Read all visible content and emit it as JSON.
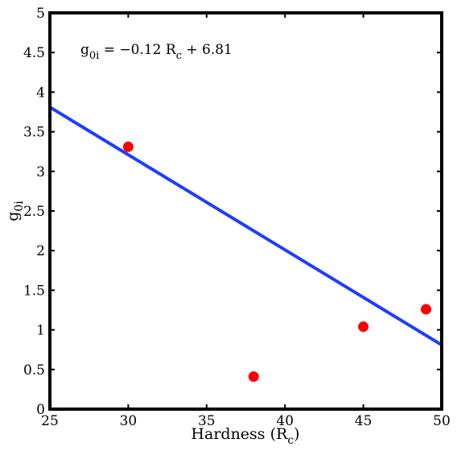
{
  "chart_data": {
    "type": "scatter",
    "xlabel": "Hardness (R",
    "xlabel_sub": "c",
    "xlabel_end": ")",
    "ylabel": "g",
    "ylabel_sub": "0i",
    "xlim": [
      25,
      50
    ],
    "ylim": [
      0,
      5
    ],
    "x_ticks": [
      "25",
      "30",
      "35",
      "40",
      "45",
      "50"
    ],
    "y_ticks": [
      "0",
      "0.5",
      "1",
      "1.5",
      "2",
      "2.5",
      "3",
      "3.5",
      "4",
      "4.5",
      "5"
    ],
    "grid": false,
    "series": [
      {
        "kind": "points",
        "color": "#ff0000",
        "points": [
          {
            "x": 30,
            "y": 3.31
          },
          {
            "x": 38,
            "y": 0.41
          },
          {
            "x": 45,
            "y": 1.04
          },
          {
            "x": 49,
            "y": 1.26
          }
        ]
      },
      {
        "kind": "fit-line",
        "color": "#1f3cff",
        "slope": -0.12,
        "intercept": 6.81
      }
    ],
    "annotation": {
      "g": "g",
      "g_sub": "0i",
      "eq_mid": " = −0.12 R",
      "r_sub": "c",
      "eq_end": " + 6.81"
    }
  }
}
